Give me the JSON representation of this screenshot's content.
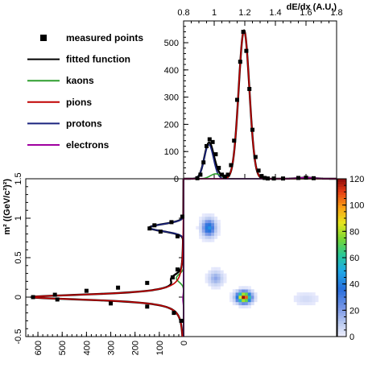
{
  "chart_data": [
    {
      "name": "dedx-projection",
      "type": "line",
      "xlabel": "dE/dx (A.U.)",
      "xlim": [
        0.8,
        1.8
      ],
      "ylim": [
        0,
        580
      ],
      "xticks": [
        "0.8",
        "1",
        "1.2",
        "1.4",
        "1.6",
        "1.8"
      ],
      "xtick_values": [
        0.8,
        1.0,
        1.2,
        1.4,
        1.6,
        1.8
      ],
      "yticks": [
        "0",
        "100",
        "200",
        "300",
        "400",
        "500"
      ],
      "ytick_values": [
        0,
        100,
        200,
        300,
        400,
        500
      ],
      "measured_points": {
        "x": [
          0.89,
          0.91,
          0.93,
          0.95,
          0.97,
          0.99,
          1.01,
          1.03,
          1.05,
          1.07,
          1.09,
          1.11,
          1.13,
          1.15,
          1.17,
          1.19,
          1.21,
          1.23,
          1.25,
          1.27,
          1.29,
          1.31,
          1.33,
          1.35,
          1.39,
          1.45,
          1.55,
          1.6,
          1.65
        ],
        "y": [
          2,
          15,
          60,
          120,
          145,
          135,
          90,
          40,
          15,
          8,
          15,
          50,
          140,
          290,
          430,
          540,
          470,
          330,
          180,
          80,
          30,
          10,
          3,
          1,
          1,
          1,
          3,
          4,
          2
        ]
      },
      "series": [
        {
          "name": "protons",
          "color": "#1a237e",
          "model": "gauss",
          "amp": 125,
          "mu": 0.965,
          "sigma": 0.03
        },
        {
          "name": "kaons",
          "color": "#2e9e2e",
          "model": "gauss",
          "amp": 18,
          "mu": 1.01,
          "sigma": 0.035
        },
        {
          "name": "pions",
          "color": "#c00000",
          "model": "gauss",
          "amp": 545,
          "mu": 1.195,
          "sigma": 0.035
        },
        {
          "name": "electrons",
          "color": "#a000a0",
          "model": "gauss",
          "amp": 4,
          "mu": 1.6,
          "sigma": 0.05
        }
      ]
    },
    {
      "name": "mass-projection",
      "type": "line",
      "ylabel": "m² ((GeV/c²)²)",
      "ylim": [
        -0.5,
        1.5
      ],
      "xlim": [
        0,
        650
      ],
      "x_reversed": true,
      "xticks": [
        "600",
        "500",
        "400",
        "300",
        "200",
        "100",
        "0"
      ],
      "xtick_values": [
        600,
        500,
        400,
        300,
        200,
        100,
        0
      ],
      "yticks": [
        "-0.5",
        "0",
        "0.5",
        "1",
        "1.5"
      ],
      "ytick_values": [
        -0.5,
        0,
        0.5,
        1,
        1.5
      ],
      "measured_points": {
        "m2": [
          1.02,
          0.95,
          0.91,
          0.87,
          0.83,
          0.77,
          0.35,
          0.25,
          0.18,
          0.12,
          0.08,
          0.03,
          0.0,
          -0.03,
          -0.08,
          -0.12,
          -0.2,
          -0.3
        ],
        "counts": [
          5,
          50,
          120,
          140,
          95,
          25,
          25,
          45,
          150,
          270,
          400,
          530,
          620,
          520,
          300,
          150,
          40,
          10
        ]
      },
      "series": [
        {
          "name": "protons",
          "color": "#1a237e",
          "model": "gauss",
          "amp": 140,
          "mu": 0.88,
          "sigma": 0.045
        },
        {
          "name": "kaons",
          "color": "#2e9e2e",
          "model": "gauss",
          "amp": 30,
          "mu": 0.24,
          "sigma": 0.05
        },
        {
          "name": "pions",
          "color": "#c00000",
          "model": "lorentz",
          "amp": 620,
          "mu": 0.0,
          "gamma": 0.045
        },
        {
          "name": "electrons",
          "color": "#a000a0",
          "model": "gauss",
          "amp": 3,
          "mu": -0.02,
          "sigma": 0.05
        }
      ]
    },
    {
      "name": "2d-histogram",
      "type": "heatmap",
      "xlim": [
        0.8,
        1.8
      ],
      "ylim": [
        -0.5,
        1.5
      ],
      "color_scale": {
        "min": 0,
        "max": 120,
        "ticks": [
          "0",
          "20",
          "40",
          "60",
          "80",
          "100",
          "120"
        ],
        "tick_values": [
          0,
          20,
          40,
          60,
          80,
          100,
          120
        ]
      },
      "clusters": [
        {
          "label": "protons",
          "x": 0.965,
          "y": 0.88,
          "sx": 0.028,
          "sy": 0.07,
          "peak": 45
        },
        {
          "label": "kaons",
          "x": 1.01,
          "y": 0.24,
          "sx": 0.03,
          "sy": 0.06,
          "peak": 18
        },
        {
          "label": "pions",
          "x": 1.195,
          "y": 0.0,
          "sx": 0.03,
          "sy": 0.045,
          "peak": 120
        },
        {
          "label": "electrons",
          "x": 1.6,
          "y": -0.02,
          "sx": 0.05,
          "sy": 0.05,
          "peak": 6
        }
      ]
    }
  ],
  "legend": {
    "entries": [
      {
        "label": "measured points",
        "marker": "square",
        "color": "#000000"
      },
      {
        "label": "fitted function",
        "marker": "line",
        "color": "#000000"
      },
      {
        "label": "kaons",
        "marker": "line",
        "color": "#2e9e2e"
      },
      {
        "label": "pions",
        "marker": "line",
        "color": "#c00000"
      },
      {
        "label": "protons",
        "marker": "line",
        "color": "#1a237e"
      },
      {
        "label": "electrons",
        "marker": "line",
        "color": "#a000a0"
      }
    ]
  }
}
